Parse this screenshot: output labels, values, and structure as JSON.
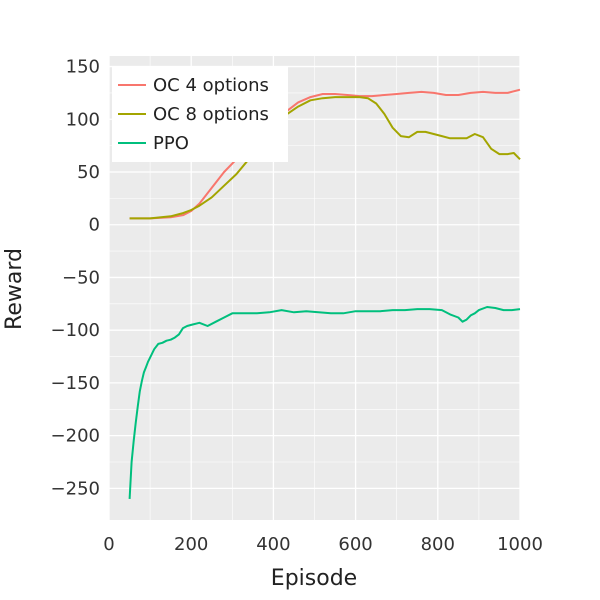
{
  "chart_data": {
    "type": "line",
    "title": "",
    "xlabel": "Episode",
    "ylabel": "Reward",
    "xlim": [
      0,
      1000
    ],
    "ylim": [
      -280,
      160
    ],
    "xticks": [
      0,
      200,
      400,
      600,
      800,
      1000
    ],
    "yticks": [
      -250,
      -200,
      -150,
      -100,
      -50,
      0,
      50,
      100,
      150
    ],
    "xtick_labels": [
      "0",
      "200",
      "400",
      "600",
      "800",
      "1000"
    ],
    "ytick_labels": [
      "−250",
      "−200",
      "−150",
      "−100",
      "−50",
      "0",
      "50",
      "100",
      "150"
    ],
    "grid": true,
    "legend_position": "top-left",
    "series": [
      {
        "name": "OC 4 options",
        "color": "#F8766D",
        "x": [
          50,
          100,
          150,
          180,
          200,
          220,
          250,
          280,
          310,
          340,
          370,
          400,
          430,
          460,
          490,
          520,
          550,
          580,
          610,
          640,
          670,
          700,
          730,
          760,
          790,
          820,
          850,
          880,
          910,
          940,
          970,
          1000
        ],
        "y": [
          6,
          6,
          7,
          9,
          13,
          20,
          35,
          50,
          62,
          75,
          85,
          97,
          107,
          116,
          121,
          124,
          124,
          123,
          122,
          122,
          123,
          124,
          125,
          126,
          125,
          123,
          123,
          125,
          126,
          125,
          125,
          128
        ]
      },
      {
        "name": "OC 8 options",
        "color": "#A3A500",
        "x": [
          50,
          100,
          150,
          180,
          200,
          220,
          250,
          280,
          310,
          340,
          370,
          400,
          430,
          460,
          490,
          520,
          550,
          580,
          610,
          630,
          650,
          670,
          690,
          710,
          730,
          750,
          770,
          790,
          810,
          830,
          850,
          870,
          890,
          910,
          930,
          950,
          970,
          985,
          1000
        ],
        "y": [
          6,
          6,
          8,
          11,
          14,
          18,
          26,
          37,
          48,
          62,
          76,
          92,
          104,
          112,
          118,
          120,
          121,
          121,
          121,
          120,
          115,
          105,
          92,
          84,
          83,
          88,
          88,
          86,
          84,
          82,
          82,
          82,
          86,
          83,
          72,
          67,
          67,
          68,
          62
        ]
      },
      {
        "name": "PPO",
        "color": "#00BF7D",
        "x": [
          50,
          55,
          60,
          65,
          70,
          75,
          80,
          85,
          90,
          95,
          100,
          110,
          120,
          130,
          140,
          150,
          160,
          170,
          180,
          190,
          200,
          220,
          240,
          260,
          280,
          300,
          330,
          360,
          390,
          420,
          450,
          480,
          510,
          540,
          570,
          600,
          630,
          660,
          690,
          720,
          750,
          780,
          810,
          830,
          850,
          860,
          870,
          880,
          890,
          900,
          920,
          940,
          960,
          980,
          1000
        ],
        "y": [
          -260,
          -225,
          -205,
          -188,
          -172,
          -158,
          -148,
          -140,
          -135,
          -130,
          -126,
          -118,
          -113,
          -112,
          -110,
          -109,
          -107,
          -104,
          -98,
          -96,
          -95,
          -93,
          -96,
          -92,
          -88,
          -84,
          -84,
          -84,
          -83,
          -81,
          -83,
          -82,
          -83,
          -84,
          -84,
          -82,
          -82,
          -82,
          -81,
          -81,
          -80,
          -80,
          -81,
          -85,
          -88,
          -92,
          -90,
          -86,
          -84,
          -81,
          -78,
          -79,
          -81,
          -81,
          -80
        ]
      }
    ]
  }
}
